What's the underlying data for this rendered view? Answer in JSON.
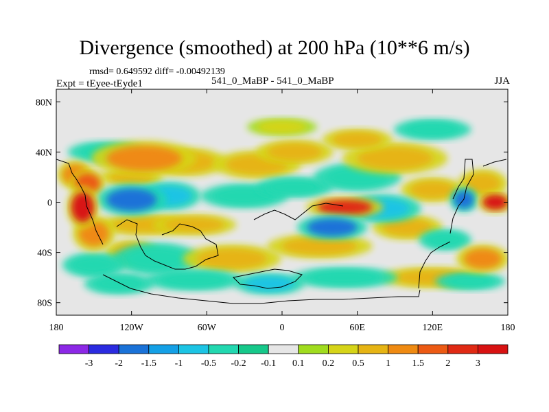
{
  "chart_data": {
    "type": "heatmap",
    "title": "Divergence (smoothed) at 200 hPa (10**6 m/s)",
    "stats_line": "rmsd= 0.649592 diff= -0.00492139",
    "experiment_label": "Expt = tEyee-tEyde1",
    "cases_label": "541_0_MaBP - 541_0_MaBP",
    "season": "JJA",
    "x_axis": {
      "range": [
        -180,
        180
      ],
      "ticks": [
        -180,
        -120,
        -60,
        0,
        60,
        120,
        180
      ],
      "tick_labels": [
        "180",
        "120W",
        "60W",
        "0",
        "60E",
        "120E",
        "180"
      ]
    },
    "y_axis": {
      "range": [
        -90,
        90
      ],
      "ticks": [
        80,
        40,
        0,
        -40,
        -80
      ],
      "tick_labels": [
        "80N",
        "40N",
        "0",
        "40S",
        "80S"
      ]
    },
    "contour_levels": [
      "-3",
      "-2",
      "-1.5",
      "-1",
      "-0.5",
      "-0.2",
      "-0.1",
      "0.1",
      "0.2",
      "0.5",
      "1",
      "1.5",
      "2",
      "3"
    ],
    "colorbar_colors": [
      "#8c28e6",
      "#2b2be0",
      "#1a72d8",
      "#14a0e6",
      "#1cc4e4",
      "#22d8b0",
      "#16c88a",
      "#e6e6e6",
      "#a0dc1e",
      "#d6d418",
      "#e6b414",
      "#ef8a12",
      "#ec5a14",
      "#e02a14",
      "#d81212"
    ],
    "blobs": [
      {
        "lon": -159,
        "lat": -4,
        "rlon": 9,
        "rlat": 12,
        "value": 3
      },
      {
        "lon": -155,
        "lat": 15,
        "rlon": 10,
        "rlat": 8,
        "value": 1.5
      },
      {
        "lon": -165,
        "lat": 22,
        "rlon": 10,
        "rlat": 8,
        "value": 1
      },
      {
        "lon": -150,
        "lat": -25,
        "rlon": 12,
        "rlat": 10,
        "value": 1
      },
      {
        "lon": -120,
        "lat": 2,
        "rlon": 20,
        "rlat": 9,
        "value": -2
      },
      {
        "lon": -90,
        "lat": 5,
        "rlon": 18,
        "rlat": 8,
        "value": -1
      },
      {
        "lon": -110,
        "lat": 35,
        "rlon": 30,
        "rlat": 10,
        "value": 1
      },
      {
        "lon": -75,
        "lat": 32,
        "rlon": 22,
        "rlat": 8,
        "value": 0.5
      },
      {
        "lon": -120,
        "lat": 20,
        "rlon": 18,
        "rlat": 5,
        "value": 0.5
      },
      {
        "lon": -140,
        "lat": 40,
        "rlon": 22,
        "rlat": 6,
        "value": -0.5
      },
      {
        "lon": -110,
        "lat": -18,
        "rlon": 26,
        "rlat": 6,
        "value": 0.5
      },
      {
        "lon": -70,
        "lat": -18,
        "rlon": 24,
        "rlat": 6,
        "value": 0.5
      },
      {
        "lon": -120,
        "lat": -40,
        "rlon": 15,
        "rlat": 7,
        "value": 0.5
      },
      {
        "lon": -100,
        "lat": -45,
        "rlon": 25,
        "rlat": 9,
        "value": -0.5
      },
      {
        "lon": -150,
        "lat": -50,
        "rlon": 18,
        "rlat": 7,
        "value": -0.5
      },
      {
        "lon": -40,
        "lat": -45,
        "rlon": 28,
        "rlat": 8,
        "value": 0.5
      },
      {
        "lon": -70,
        "lat": -62,
        "rlon": 28,
        "rlat": 6,
        "value": -0.5
      },
      {
        "lon": -130,
        "lat": -65,
        "rlon": 20,
        "rlat": 6,
        "value": -0.5
      },
      {
        "lon": -30,
        "lat": 5,
        "rlon": 25,
        "rlat": 7,
        "value": -0.5
      },
      {
        "lon": -20,
        "lat": 30,
        "rlon": 25,
        "rlat": 8,
        "value": 0.5
      },
      {
        "lon": 10,
        "lat": 40,
        "rlon": 22,
        "rlat": 7,
        "value": 0.5
      },
      {
        "lon": 10,
        "lat": 12,
        "rlon": 22,
        "rlat": 6,
        "value": -0.5
      },
      {
        "lon": 50,
        "lat": -4,
        "rlon": 22,
        "rlat": 6,
        "value": 2
      },
      {
        "lon": 40,
        "lat": -20,
        "rlon": 20,
        "rlat": 7,
        "value": -2
      },
      {
        "lon": 30,
        "lat": -35,
        "rlon": 30,
        "rlat": 7,
        "value": 0.5
      },
      {
        "lon": 80,
        "lat": -5,
        "rlon": 22,
        "rlat": 8,
        "value": -1
      },
      {
        "lon": 60,
        "lat": 20,
        "rlon": 25,
        "rlat": 8,
        "value": -0.5
      },
      {
        "lon": 90,
        "lat": 35,
        "rlon": 30,
        "rlat": 9,
        "value": 0.5
      },
      {
        "lon": 60,
        "lat": 50,
        "rlon": 20,
        "rlat": 6,
        "value": 0.5
      },
      {
        "lon": 120,
        "lat": 10,
        "rlon": 18,
        "rlat": 7,
        "value": 0.5
      },
      {
        "lon": 100,
        "lat": -20,
        "rlon": 20,
        "rlat": 7,
        "value": 0.5
      },
      {
        "lon": 130,
        "lat": -30,
        "rlon": 15,
        "rlat": 6,
        "value": -0.5
      },
      {
        "lon": 145,
        "lat": 2,
        "rlon": 8,
        "rlat": 7,
        "value": -2
      },
      {
        "lon": 170,
        "lat": 0,
        "rlon": 10,
        "rlat": 6,
        "value": 3
      },
      {
        "lon": 160,
        "lat": 15,
        "rlon": 14,
        "rlat": 8,
        "value": 0.5
      },
      {
        "lon": 120,
        "lat": -60,
        "rlon": 30,
        "rlat": 6,
        "value": 0.5
      },
      {
        "lon": 50,
        "lat": -60,
        "rlon": 30,
        "rlat": 6,
        "value": -0.5
      },
      {
        "lon": 160,
        "lat": -45,
        "rlon": 15,
        "rlat": 8,
        "value": 1
      },
      {
        "lon": 150,
        "lat": -63,
        "rlon": 20,
        "rlat": 5,
        "value": -0.5
      },
      {
        "lon": 0,
        "lat": 60,
        "rlon": 20,
        "rlat": 5,
        "value": 0.2
      },
      {
        "lon": 120,
        "lat": 58,
        "rlon": 22,
        "rlat": 6,
        "value": -0.5
      },
      {
        "lon": -10,
        "lat": -65,
        "rlon": 20,
        "rlat": 6,
        "value": -1
      }
    ]
  }
}
